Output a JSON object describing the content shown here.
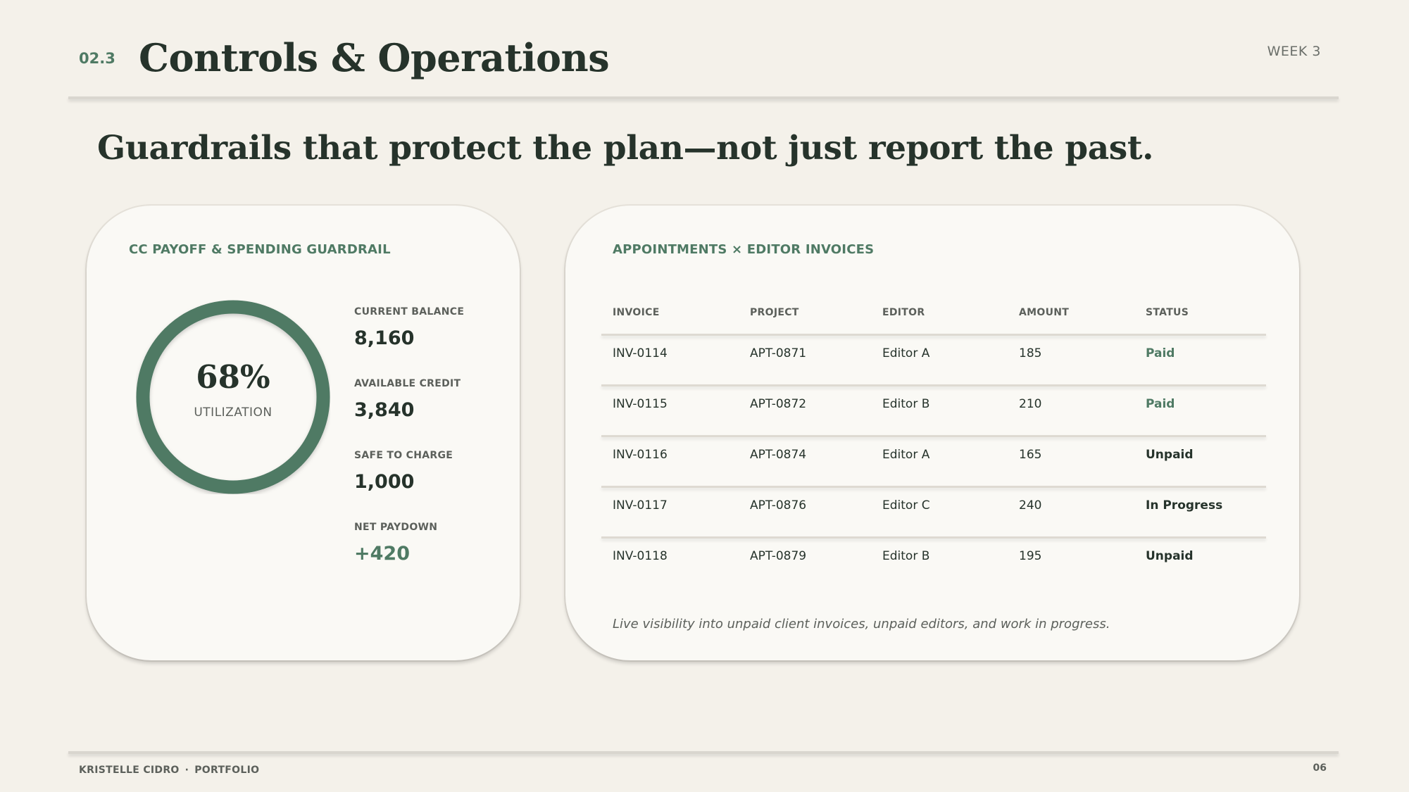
{
  "header": {
    "section_number": "02.3",
    "title": "Controls & Operations",
    "week": "WEEK 3"
  },
  "headline": "Guardrails that protect the plan—not just report the past.",
  "guardrail_card": {
    "title": "CC PAYOFF & SPENDING GUARDRAIL",
    "utilization": {
      "value": "68%",
      "label": "UTILIZATION",
      "fraction": 0.68
    },
    "metrics": [
      {
        "label": "CURRENT BALANCE",
        "value": "8,160"
      },
      {
        "label": "AVAILABLE CREDIT",
        "value": "3,840"
      },
      {
        "label": "SAFE TO CHARGE",
        "value": "1,000"
      },
      {
        "label": "NET PAYDOWN",
        "value": "+420"
      }
    ],
    "colors": {
      "ring": "#4f7a64",
      "accent": "#4f7a64"
    }
  },
  "invoices_card": {
    "title": "APPOINTMENTS × EDITOR INVOICES",
    "columns": [
      "INVOICE",
      "PROJECT",
      "EDITOR",
      "AMOUNT",
      "STATUS"
    ],
    "rows": [
      {
        "invoice": "INV-0114",
        "project": "APT-0871",
        "editor": "Editor A",
        "amount": "185",
        "status": "Paid"
      },
      {
        "invoice": "INV-0115",
        "project": "APT-0872",
        "editor": "Editor B",
        "amount": "210",
        "status": "Paid"
      },
      {
        "invoice": "INV-0116",
        "project": "APT-0874",
        "editor": "Editor A",
        "amount": "165",
        "status": "Unpaid"
      },
      {
        "invoice": "INV-0117",
        "project": "APT-0876",
        "editor": "Editor C",
        "amount": "240",
        "status": "In Progress"
      },
      {
        "invoice": "INV-0118",
        "project": "APT-0879",
        "editor": "Editor B",
        "amount": "195",
        "status": "Unpaid"
      }
    ],
    "footnote": "Live visibility into unpaid client invoices, unpaid editors, and work in progress."
  },
  "footer": {
    "author": "KRISTELLE CIDRO",
    "separator": "·",
    "section": "PORTFOLIO",
    "page_number": "06"
  }
}
